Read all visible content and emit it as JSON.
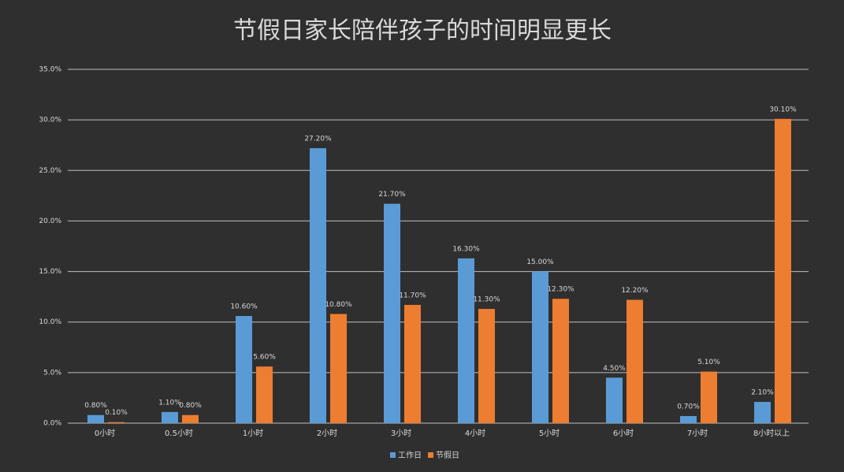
{
  "chart_data": {
    "type": "bar",
    "title": "节假日家长陪伴孩子的时间明显更长",
    "categories": [
      "0小时",
      "0.5小时",
      "1小时",
      "2小时",
      "3小时",
      "4小时",
      "5小时",
      "6小时",
      "7小时",
      "8小时以上"
    ],
    "series": [
      {
        "name": "工作日",
        "color": "#5b9bd5",
        "values": [
          0.8,
          1.1,
          10.6,
          27.2,
          21.7,
          16.3,
          15.0,
          4.5,
          0.7,
          2.1
        ],
        "value_labels": [
          "0.80%",
          "1.10%",
          "10.60%",
          "27.20%",
          "21.70%",
          "16.30%",
          "15.00%",
          "4.50%",
          "0.70%",
          "2.10%"
        ]
      },
      {
        "name": "节假日",
        "color": "#ed7d31",
        "values": [
          0.1,
          0.8,
          5.6,
          10.8,
          11.7,
          11.3,
          12.3,
          12.2,
          5.1,
          30.1
        ],
        "value_labels": [
          "0.10%",
          "0.80%",
          "5.60%",
          "10.80%",
          "11.70%",
          "11.30%",
          "12.30%",
          "12.20%",
          "5.10%",
          "30.10%"
        ]
      }
    ],
    "ylim": [
      0,
      35
    ],
    "yticks": [
      {
        "value": 0,
        "label": "0.0%"
      },
      {
        "value": 5,
        "label": "5.0%"
      },
      {
        "value": 10,
        "label": "10.0%"
      },
      {
        "value": 15,
        "label": "15.0%"
      },
      {
        "value": 20,
        "label": "20.0%"
      },
      {
        "value": 25,
        "label": "25.0%"
      },
      {
        "value": 30,
        "label": "30.0%"
      },
      {
        "value": 35,
        "label": "35.0%"
      }
    ],
    "grid": true,
    "legend": "bottom"
  }
}
